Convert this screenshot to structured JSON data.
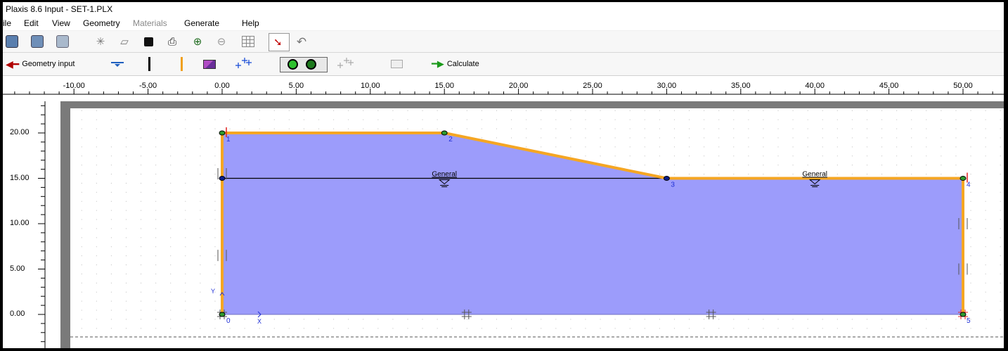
{
  "window": {
    "title": "Plaxis 8.6 Input - SET-1.PLX"
  },
  "menu": [
    {
      "label": "ile",
      "enabled": true
    },
    {
      "label": "Edit",
      "enabled": true
    },
    {
      "label": "View",
      "enabled": true
    },
    {
      "label": "Geometry",
      "enabled": true
    },
    {
      "label": "Materials",
      "enabled": false
    },
    {
      "label": "Generate",
      "enabled": true
    },
    {
      "label": "Help",
      "enabled": true
    }
  ],
  "toolbar2": {
    "geometry_input_label": "Geometry input",
    "calculate_label": "Calculate"
  },
  "rulers": {
    "x_labels": [
      "-10.00",
      "-5.00",
      "0.00",
      "5.00",
      "10.00",
      "15.00",
      "20.00",
      "25.00",
      "30.00",
      "35.00",
      "40.00",
      "45.00",
      "50.00"
    ],
    "y_labels": [
      "20.00",
      "15.00",
      "10.00",
      "5.00",
      "0.00"
    ]
  },
  "model": {
    "points": [
      {
        "id": "0",
        "x": 0,
        "y": 0
      },
      {
        "id": "1",
        "x": 0,
        "y": 20
      },
      {
        "id": "2",
        "x": 15,
        "y": 20
      },
      {
        "id": "3",
        "x": 30,
        "y": 15
      },
      {
        "id": "4",
        "x": 50,
        "y": 15
      },
      {
        "id": "5",
        "x": 50,
        "y": 0
      }
    ],
    "phreatic_level": 15,
    "phreatic_labels": [
      {
        "text": "General",
        "x": 15
      },
      {
        "text": "General",
        "x": 40
      }
    ],
    "axis_labels": {
      "x": "X",
      "y": "Y"
    },
    "colors": {
      "soil": "#9c9cfb",
      "boundary": "#f5a623",
      "line": "#000000",
      "point_label": "#1f2fd6"
    }
  }
}
